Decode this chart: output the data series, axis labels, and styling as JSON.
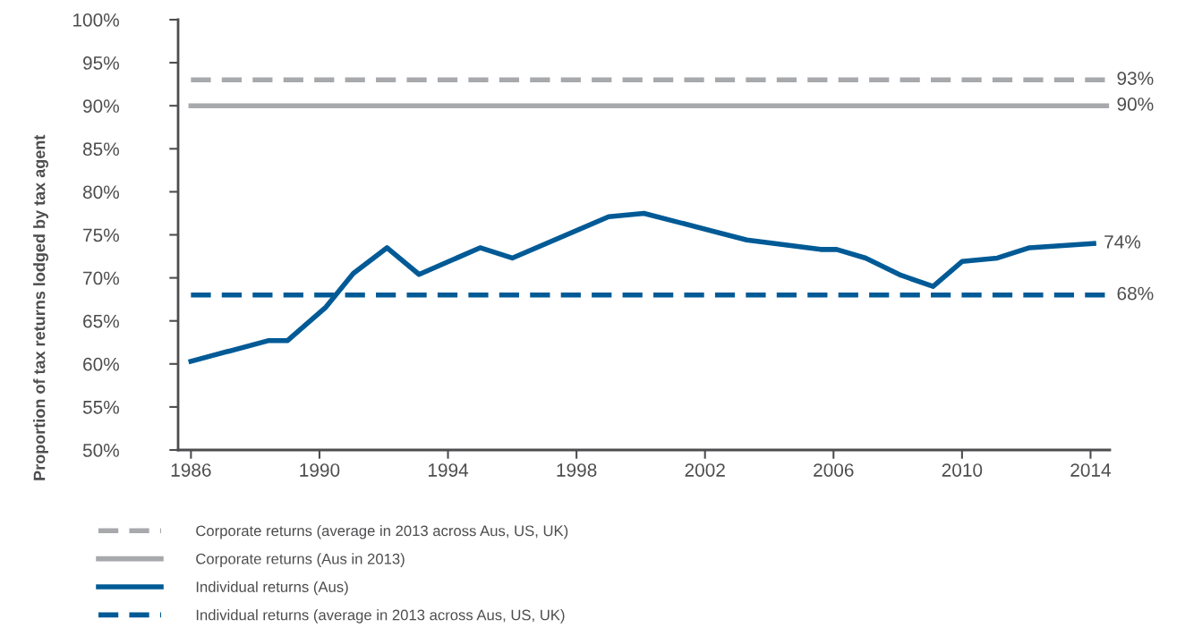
{
  "chart_data": {
    "type": "line",
    "ylabel": "Proportion of tax returns lodged by tax agent",
    "xlim": [
      1985.6,
      2014.6
    ],
    "xticks": [
      1986,
      1990,
      1994,
      1998,
      2002,
      2006,
      2010,
      2014
    ],
    "ylim": [
      50,
      100
    ],
    "yticks": [
      {
        "value": 50,
        "label": "50%"
      },
      {
        "value": 55,
        "label": "55%"
      },
      {
        "value": 60,
        "label": "60%"
      },
      {
        "value": 65,
        "label": "65%"
      },
      {
        "value": 70,
        "label": "70%"
      },
      {
        "value": 75,
        "label": "75%"
      },
      {
        "value": 80,
        "label": "80%"
      },
      {
        "value": 85,
        "label": "85%"
      },
      {
        "value": 90,
        "label": "90%"
      },
      {
        "value": 95,
        "label": "95%"
      },
      {
        "value": 100,
        "label": "100%"
      }
    ],
    "grid": false,
    "legend": "bottom",
    "marker": "none",
    "series": [
      {
        "name": "Corporate returns (average in 2013 across Aus, US, UK)",
        "color": "#a7a9ac",
        "line_style": "dashed",
        "x": [
          1986,
          2014.5
        ],
        "values": [
          93,
          93
        ],
        "value_labels": [
          null,
          "93%"
        ]
      },
      {
        "name": "Corporate returns (Aus in 2013)",
        "color": "#a7a9ac",
        "line_style": "solid",
        "x": [
          1986,
          2014.5
        ],
        "values": [
          90,
          90
        ],
        "value_labels": [
          null,
          "90%"
        ]
      },
      {
        "name": "Individual returns (Aus)",
        "color": "#005a96",
        "line_style": "solid",
        "x": [
          1986.0,
          1988.4,
          1989.0,
          1990.2,
          1991.05,
          1992.1,
          1993.1,
          1995.0,
          1996.0,
          1999.0,
          2000.1,
          2003.3,
          2005.6,
          2006.1,
          2007.0,
          2008.1,
          2009.1,
          2010.0,
          2011.1,
          2012.1,
          2014.1
        ],
        "values": [
          60.3,
          62.7,
          62.7,
          66.6,
          70.5,
          73.5,
          70.4,
          73.5,
          72.3,
          77.1,
          77.5,
          74.4,
          73.3,
          73.3,
          72.3,
          70.3,
          69.0,
          71.9,
          72.3,
          73.5,
          74.0
        ],
        "value_labels": [
          null,
          null,
          null,
          null,
          null,
          null,
          null,
          null,
          null,
          null,
          null,
          null,
          null,
          null,
          null,
          null,
          null,
          null,
          null,
          null,
          "74%"
        ]
      },
      {
        "name": "Individual returns (average in 2013 across Aus, US, UK)",
        "color": "#005a96",
        "line_style": "dashed",
        "x": [
          1986,
          2014.5
        ],
        "values": [
          68,
          68
        ],
        "value_labels": [
          null,
          "68%"
        ]
      }
    ]
  }
}
